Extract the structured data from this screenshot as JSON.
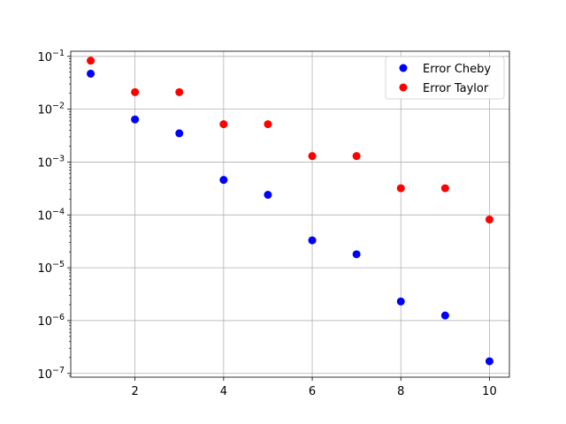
{
  "chart_data": {
    "type": "scatter",
    "title": "",
    "xlabel": "",
    "ylabel": "",
    "yscale": "log",
    "grid": true,
    "legend_position": "top-right",
    "xlim": [
      0.55,
      10.45
    ],
    "ylim": [
      8.5e-08,
      0.125
    ],
    "x_ticks": [
      2,
      4,
      6,
      8,
      10
    ],
    "x_tick_labels": [
      "2",
      "4",
      "6",
      "8",
      "10"
    ],
    "y_ticks": [
      1e-07,
      1e-06,
      1e-05,
      0.0001,
      0.001,
      0.01,
      0.1
    ],
    "y_tick_labels": [
      {
        "base": "10",
        "exp": "−7"
      },
      {
        "base": "10",
        "exp": "−6"
      },
      {
        "base": "10",
        "exp": "−5"
      },
      {
        "base": "10",
        "exp": "−4"
      },
      {
        "base": "10",
        "exp": "−3"
      },
      {
        "base": "10",
        "exp": "−2"
      },
      {
        "base": "10",
        "exp": "−1"
      }
    ],
    "series": [
      {
        "name": "Error Cheby",
        "color": "#0000ff",
        "x": [
          1,
          2,
          3,
          4,
          5,
          6,
          7,
          8,
          9,
          10
        ],
        "y": [
          0.047,
          0.0064,
          0.0035,
          0.00046,
          0.00024,
          3.3e-05,
          1.8e-05,
          2.3e-06,
          1.25e-06,
          1.7e-07
        ]
      },
      {
        "name": "Error Taylor",
        "color": "#ff0000",
        "x": [
          1,
          2,
          3,
          4,
          5,
          6,
          7,
          8,
          9,
          10
        ],
        "y": [
          0.083,
          0.021,
          0.021,
          0.0052,
          0.0052,
          0.0013,
          0.0013,
          0.00032,
          0.00032,
          8.2e-05
        ]
      }
    ]
  }
}
